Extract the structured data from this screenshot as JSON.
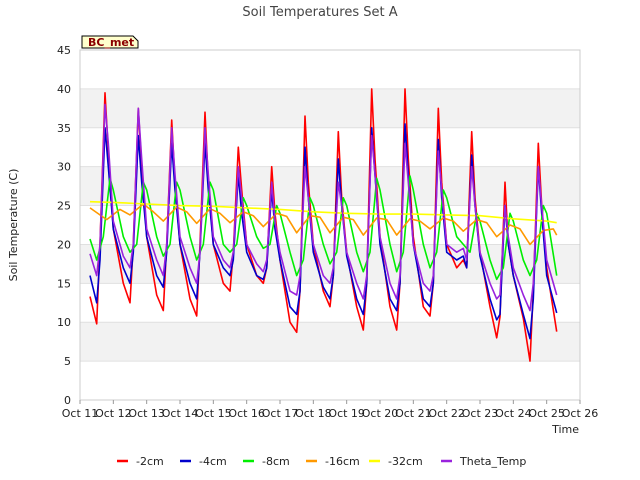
{
  "chart_data": {
    "type": "line",
    "title": "Soil Temperatures Set A",
    "xlabel": "Time",
    "ylabel": "Soil Temperature (C)",
    "badge": "BC_met",
    "ylim": [
      0,
      45
    ],
    "yticks": [
      0,
      5,
      10,
      15,
      20,
      25,
      30,
      35,
      40,
      45
    ],
    "xlim": [
      11,
      26
    ],
    "xticks": [
      11,
      12,
      13,
      14,
      15,
      16,
      17,
      18,
      19,
      20,
      21,
      22,
      23,
      24,
      25,
      26
    ],
    "xtick_labels": [
      "Oct 11",
      "Oct 12",
      "Oct 13",
      "Oct 14",
      "Oct 15",
      "Oct 16",
      "Oct 17",
      "Oct 18",
      "Oct 19",
      "Oct 20",
      "Oct 21",
      "Oct 22",
      "Oct 23",
      "Oct 24",
      "Oct 25",
      "Oct 26"
    ],
    "grid": "horizontal bands",
    "legend_position": "bottom",
    "series": [
      {
        "name": "-2cm",
        "color": "#ff0000",
        "x": [
          11.3,
          11.5,
          11.6,
          11.75,
          11.85,
          12.0,
          12.3,
          12.5,
          12.6,
          12.75,
          12.85,
          13.0,
          13.3,
          13.5,
          13.6,
          13.75,
          13.85,
          14.0,
          14.3,
          14.5,
          14.6,
          14.75,
          14.85,
          15.0,
          15.3,
          15.5,
          15.6,
          15.75,
          15.85,
          16.0,
          16.3,
          16.5,
          16.6,
          16.75,
          16.85,
          17.0,
          17.3,
          17.5,
          17.6,
          17.75,
          17.85,
          18.0,
          18.3,
          18.5,
          18.6,
          18.75,
          18.85,
          19.0,
          19.3,
          19.5,
          19.6,
          19.75,
          19.85,
          20.0,
          20.3,
          20.5,
          20.6,
          20.75,
          20.85,
          21.0,
          21.3,
          21.5,
          21.6,
          21.75,
          21.85,
          22.0,
          22.3,
          22.5,
          22.6,
          22.75,
          22.85,
          23.0,
          23.3,
          23.5,
          23.6,
          23.75,
          23.85,
          24.0,
          24.3,
          24.5,
          24.6,
          24.75,
          24.85,
          25.0,
          25.3
        ],
        "y": [
          13.3,
          9.8,
          20,
          39.5,
          32,
          22,
          15,
          12.5,
          20,
          37.5,
          30,
          21,
          13.5,
          11.5,
          20,
          36,
          28,
          20,
          13,
          10.8,
          20,
          37,
          28,
          20,
          15,
          14,
          19,
          32.5,
          27,
          20,
          16,
          15,
          17,
          30,
          24,
          18,
          10,
          8.7,
          14,
          36.5,
          28,
          20,
          14,
          12,
          16,
          34.5,
          26,
          19,
          12,
          9,
          15,
          40,
          31,
          21,
          12,
          9,
          15,
          40,
          31,
          21,
          12,
          10.8,
          15,
          37.5,
          28,
          20,
          17,
          18,
          17,
          34.5,
          26,
          19,
          12,
          8,
          10.7,
          28,
          20,
          16,
          10.5,
          5,
          14,
          33,
          25,
          17,
          8.8
        ]
      },
      {
        "name": "-4cm",
        "color": "#0000cc",
        "x": [
          11.3,
          11.5,
          11.6,
          11.75,
          11.85,
          12.0,
          12.3,
          12.5,
          12.6,
          12.75,
          12.85,
          13.0,
          13.3,
          13.5,
          13.6,
          13.75,
          13.85,
          14.0,
          14.3,
          14.5,
          14.6,
          14.75,
          14.85,
          15.0,
          15.3,
          15.5,
          15.6,
          15.75,
          15.85,
          16.0,
          16.3,
          16.5,
          16.6,
          16.75,
          16.85,
          17.0,
          17.3,
          17.5,
          17.6,
          17.75,
          17.85,
          18.0,
          18.3,
          18.5,
          18.6,
          18.75,
          18.85,
          19.0,
          19.3,
          19.5,
          19.6,
          19.75,
          19.85,
          20.0,
          20.3,
          20.5,
          20.6,
          20.75,
          20.85,
          21.0,
          21.3,
          21.5,
          21.6,
          21.75,
          21.85,
          22.0,
          22.3,
          22.5,
          22.6,
          22.75,
          22.85,
          23.0,
          23.3,
          23.5,
          23.6,
          23.75,
          23.85,
          24.0,
          24.3,
          24.5,
          24.6,
          24.75,
          24.85,
          25.0,
          25.3
        ],
        "y": [
          16,
          12.5,
          18,
          35,
          30,
          22,
          17,
          15,
          19,
          34,
          28,
          21,
          16,
          14.5,
          19,
          33,
          27,
          20,
          15,
          13,
          19,
          33,
          27,
          20,
          17,
          16,
          18,
          29,
          24,
          19,
          16,
          15.5,
          17,
          27,
          22,
          18,
          12,
          11,
          14,
          32.5,
          26,
          19,
          14.5,
          13,
          16,
          31,
          25,
          18.5,
          13,
          11,
          15,
          35,
          29,
          20,
          13,
          11.5,
          15,
          35.5,
          29,
          20,
          13,
          12,
          15,
          33.5,
          26,
          19,
          18,
          18.5,
          17,
          31.5,
          25,
          18.5,
          13,
          10.3,
          11,
          25,
          20,
          16,
          11,
          7.9,
          13,
          30,
          24,
          16,
          11.2
        ]
      },
      {
        "name": "-8cm",
        "color": "#00ee00",
        "x": [
          11.3,
          11.5,
          11.7,
          11.9,
          12.0,
          12.3,
          12.5,
          12.7,
          12.9,
          13.0,
          13.3,
          13.5,
          13.7,
          13.9,
          14.0,
          14.3,
          14.5,
          14.7,
          14.9,
          15.0,
          15.3,
          15.5,
          15.7,
          15.9,
          16.0,
          16.3,
          16.5,
          16.7,
          16.9,
          17.0,
          17.3,
          17.5,
          17.7,
          17.9,
          18.0,
          18.3,
          18.5,
          18.7,
          18.9,
          19.0,
          19.3,
          19.5,
          19.7,
          19.9,
          20.0,
          20.3,
          20.5,
          20.7,
          20.9,
          21.0,
          21.3,
          21.5,
          21.7,
          21.9,
          22.0,
          22.3,
          22.5,
          22.7,
          22.9,
          23.0,
          23.3,
          23.5,
          23.7,
          23.9,
          24.0,
          24.3,
          24.5,
          24.7,
          24.9,
          25.0,
          25.3
        ],
        "y": [
          20.7,
          18,
          21,
          28.5,
          27,
          21,
          19,
          20,
          28,
          27,
          21,
          18.5,
          20,
          28,
          27,
          21,
          18,
          20,
          28,
          27,
          20,
          19,
          20,
          26,
          25,
          21,
          19.5,
          20,
          25,
          24,
          19,
          16,
          18,
          26,
          25,
          20,
          17.5,
          19,
          26,
          25,
          19,
          16.5,
          19,
          28.5,
          27,
          20,
          16.5,
          19,
          28.8,
          27,
          20,
          17,
          19,
          27,
          26,
          21,
          20,
          19,
          24,
          23,
          18,
          15.5,
          17,
          24,
          23,
          18,
          16,
          18,
          25,
          24,
          16
        ]
      },
      {
        "name": "-16cm",
        "color": "#ff9900",
        "x": [
          11.3,
          11.8,
          12.2,
          12.5,
          12.9,
          13.2,
          13.5,
          13.9,
          14.2,
          14.5,
          14.9,
          15.2,
          15.5,
          15.9,
          16.2,
          16.5,
          16.9,
          17.2,
          17.5,
          17.9,
          18.2,
          18.5,
          18.9,
          19.2,
          19.5,
          19.9,
          20.2,
          20.5,
          20.9,
          21.2,
          21.5,
          21.9,
          22.2,
          22.5,
          22.9,
          23.2,
          23.5,
          23.9,
          24.2,
          24.5,
          24.9,
          25.2,
          25.3
        ],
        "y": [
          24.7,
          23.2,
          24.5,
          23.8,
          25.2,
          24.2,
          23,
          24.8,
          24.2,
          22.7,
          24.6,
          24,
          22.8,
          24.2,
          23.7,
          22.3,
          24,
          23.6,
          21.5,
          23.7,
          23.5,
          21.5,
          23.5,
          23.2,
          21.2,
          23.4,
          23.2,
          21.2,
          23.3,
          23,
          22,
          23.4,
          23,
          21.7,
          23.2,
          22.8,
          21,
          22.5,
          22,
          20,
          21.8,
          22,
          21.2
        ]
      },
      {
        "name": "-32cm",
        "color": "#ffff00",
        "x": [
          11.3,
          12.0,
          13.0,
          14.0,
          15.0,
          16.0,
          17.0,
          18.0,
          19.0,
          20.0,
          21.0,
          22.0,
          23.0,
          24.0,
          25.0,
          25.3
        ],
        "y": [
          25.5,
          25.4,
          25.2,
          25.0,
          24.9,
          24.7,
          24.5,
          24.2,
          24.0,
          23.9,
          23.9,
          23.8,
          23.7,
          23.3,
          23,
          22.8
        ]
      },
      {
        "name": "Theta_Temp",
        "color": "#9922dd",
        "x": [
          11.3,
          11.5,
          11.6,
          11.75,
          11.85,
          12.0,
          12.3,
          12.5,
          12.6,
          12.75,
          12.85,
          13.0,
          13.3,
          13.5,
          13.6,
          13.75,
          13.85,
          14.0,
          14.3,
          14.5,
          14.6,
          14.75,
          14.85,
          15.0,
          15.3,
          15.5,
          15.6,
          15.75,
          15.85,
          16.0,
          16.3,
          16.5,
          16.6,
          16.75,
          16.85,
          17.0,
          17.3,
          17.5,
          17.6,
          17.75,
          17.85,
          18.0,
          18.3,
          18.5,
          18.6,
          18.75,
          18.85,
          19.0,
          19.3,
          19.5,
          19.6,
          19.75,
          19.85,
          20.0,
          20.3,
          20.5,
          20.6,
          20.75,
          20.85,
          21.0,
          21.3,
          21.5,
          21.6,
          21.75,
          21.85,
          22.0,
          22.3,
          22.5,
          22.6,
          22.75,
          22.85,
          23.0,
          23.3,
          23.5,
          23.6,
          23.75,
          23.85,
          24.0,
          24.3,
          24.5,
          24.6,
          24.75,
          24.85,
          25.0,
          25.3
        ],
        "y": [
          18.8,
          16,
          20,
          38,
          33,
          23,
          18.5,
          17,
          20,
          37.5,
          31,
          22,
          18,
          16,
          20,
          35,
          29,
          21,
          17,
          15,
          19,
          35,
          29,
          21,
          18,
          17,
          19,
          30,
          26,
          20,
          17.5,
          16.5,
          18,
          28,
          23,
          19,
          14,
          13.5,
          16,
          30,
          26,
          20,
          16,
          15,
          17,
          28,
          25,
          19,
          15,
          13,
          16,
          34,
          29,
          21,
          15,
          13,
          16,
          33,
          28,
          20,
          15,
          14,
          16,
          32,
          27,
          20,
          19,
          19.5,
          18,
          30,
          25,
          19,
          15,
          13,
          13.5,
          25,
          21,
          17,
          13.5,
          11.5,
          15,
          30,
          25,
          18,
          13.5
        ]
      }
    ]
  }
}
